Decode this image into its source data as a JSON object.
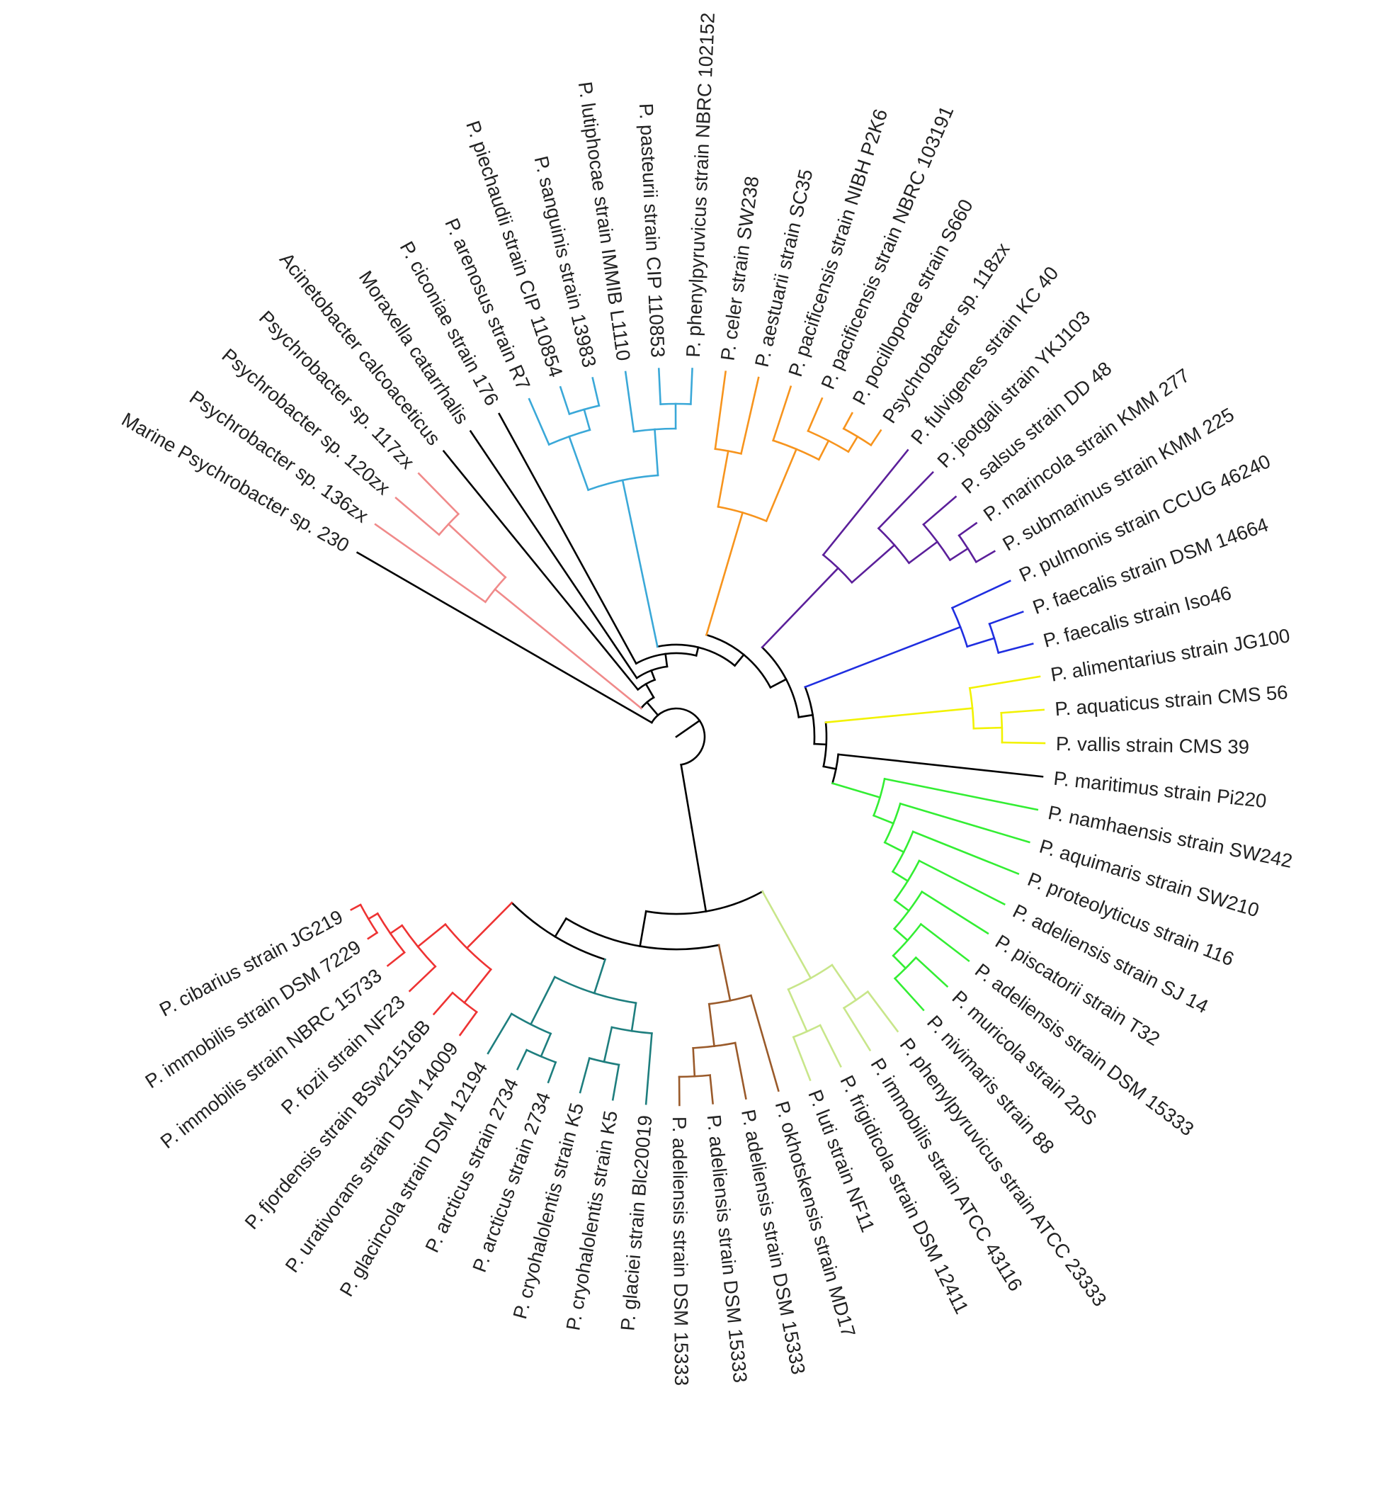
{
  "clade_colors": {
    "black": "#000000",
    "pink": "#f08a8a",
    "cyan": "#3aa8d8",
    "orange": "#f7941d",
    "purple": "#5b1f9a",
    "blue": "#1f2ee0",
    "yellow": "#f2f200",
    "green": "#33ee33",
    "olive": "#c8e68a",
    "brown": "#9a5a2a",
    "teal": "#1e7e7e",
    "red": "#ee3333"
  },
  "tips": [
    {
      "label": "Marine Psychrobacter sp. 230",
      "clade": "black"
    },
    {
      "label": "Psychrobacter sp. 136zx",
      "clade": "pink"
    },
    {
      "label": "Psychrobacter sp. 120zx",
      "clade": "pink"
    },
    {
      "label": "Psychrobacter sp. 117zx",
      "clade": "pink"
    },
    {
      "label": "Acinetobacter calcoaceticus",
      "clade": "black"
    },
    {
      "label": "Moraxella catarrhalis",
      "clade": "black"
    },
    {
      "label": "P. ciconiae strain 176",
      "clade": "black"
    },
    {
      "label": "P. arenosus strain R7",
      "clade": "cyan"
    },
    {
      "label": "P. piechaudii strain CIP 110854",
      "clade": "cyan"
    },
    {
      "label": "P. sanguinis strain 13983",
      "clade": "cyan"
    },
    {
      "label": "P. lutiphocae strain IMMIB L1110",
      "clade": "cyan"
    },
    {
      "label": "P. pasteurii strain CIP 110853",
      "clade": "cyan"
    },
    {
      "label": "P. phenylpyruvicus strain NBRC 102152",
      "clade": "cyan"
    },
    {
      "label": "P. celer strain SW238",
      "clade": "orange"
    },
    {
      "label": "P. aestuarii strain SC35",
      "clade": "orange"
    },
    {
      "label": "P. pacificensis strain NIBH P2K6",
      "clade": "orange"
    },
    {
      "label": "P. pacificensis strain NBRC 103191",
      "clade": "orange"
    },
    {
      "label": "P. pocilloporae strain S660",
      "clade": "orange"
    },
    {
      "label": "Psychrobacter sp. 118zx",
      "clade": "orange"
    },
    {
      "label": "P. fulvigenes strain KC 40",
      "clade": "purple"
    },
    {
      "label": "P. jeotgali strain YKJ103",
      "clade": "purple"
    },
    {
      "label": "P. salsus strain DD 48",
      "clade": "purple"
    },
    {
      "label": "P. marincola strain KMM 277",
      "clade": "purple"
    },
    {
      "label": "P. submarinus strain KMM 225",
      "clade": "purple"
    },
    {
      "label": "P. pulmonis strain CCUG 46240",
      "clade": "blue"
    },
    {
      "label": "P. faecalis strain DSM 14664",
      "clade": "blue"
    },
    {
      "label": "P. faecalis strain Iso46",
      "clade": "blue"
    },
    {
      "label": "P. alimentarius strain JG100",
      "clade": "yellow"
    },
    {
      "label": "P. aquaticus strain CMS 56",
      "clade": "yellow"
    },
    {
      "label": "P. vallis strain CMS 39",
      "clade": "yellow"
    },
    {
      "label": "P. maritimus strain Pi220",
      "clade": "black"
    },
    {
      "label": "P. namhaensis strain SW242",
      "clade": "green"
    },
    {
      "label": "P. aquimaris strain SW210",
      "clade": "green"
    },
    {
      "label": "P. proteolyticus strain 116",
      "clade": "green"
    },
    {
      "label": "P. adeliensis strain SJ 14",
      "clade": "green"
    },
    {
      "label": "P. piscatorii strain T32",
      "clade": "green"
    },
    {
      "label": "P. adeliensis strain DSM 15333",
      "clade": "green"
    },
    {
      "label": "P. muricola strain 2pS",
      "clade": "green"
    },
    {
      "label": "P. nivimaris strain 88",
      "clade": "green"
    },
    {
      "label": "P. phenylpyruvicus strain ATCC 23333",
      "clade": "olive"
    },
    {
      "label": "P. immobilis strain ATCC 43116",
      "clade": "olive"
    },
    {
      "label": "P. frigidicola strain DSM 12411",
      "clade": "olive"
    },
    {
      "label": "P. luti strain NF11",
      "clade": "olive"
    },
    {
      "label": "P. okhotskensis strain MD17",
      "clade": "brown"
    },
    {
      "label": "P. adeliensis strain DSM 15333",
      "clade": "brown"
    },
    {
      "label": "P. adeliensis strain DSM 15333",
      "clade": "brown"
    },
    {
      "label": "P. adeliensis strain DSM 15333",
      "clade": "brown"
    },
    {
      "label": "P. glaciei strain Blc20019",
      "clade": "teal"
    },
    {
      "label": "P. cryohalolentis strain K5",
      "clade": "teal"
    },
    {
      "label": "P. cryohalolentis strain K5",
      "clade": "teal"
    },
    {
      "label": "P. arcticus strain 2734",
      "clade": "teal"
    },
    {
      "label": "P. arcticus strain 2734",
      "clade": "teal"
    },
    {
      "label": "P. glacincola strain DSM 12194",
      "clade": "teal"
    },
    {
      "label": "P. urativorans strain DSM 14009",
      "clade": "red"
    },
    {
      "label": "P. fjordensis strain BSw21516B",
      "clade": "red"
    },
    {
      "label": "P. fozii strain NF23",
      "clade": "red"
    },
    {
      "label": "P. immobilis strain NBRC 15733",
      "clade": "red"
    },
    {
      "label": "P. immobilis strain DSM 7229",
      "clade": "red"
    },
    {
      "label": "P. cibarius strain JG219",
      "clade": "red"
    }
  ]
}
